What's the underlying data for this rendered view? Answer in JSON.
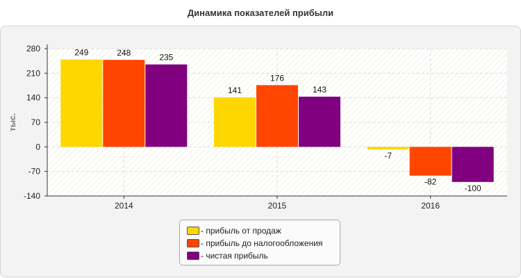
{
  "chart_data": {
    "type": "bar",
    "title": "Динамика показателей прибыли",
    "ylabel": "тыс.",
    "xlabel": "",
    "categories": [
      "2014",
      "2015",
      "2016"
    ],
    "series": [
      {
        "name": "- прибыль от продаж",
        "values": [
          249,
          141,
          -7
        ],
        "color": "#FFD700"
      },
      {
        "name": "- прибыль до налогообложения",
        "values": [
          248,
          176,
          -82
        ],
        "color": "#FF4500"
      },
      {
        "name": "- чистая прибыль",
        "values": [
          235,
          143,
          -100
        ],
        "color": "#800080"
      }
    ],
    "ylim": [
      -140,
      280
    ],
    "yticks": [
      280,
      210,
      140,
      70,
      0,
      -70,
      -140
    ],
    "grid": true,
    "legend_position": "bottom"
  }
}
